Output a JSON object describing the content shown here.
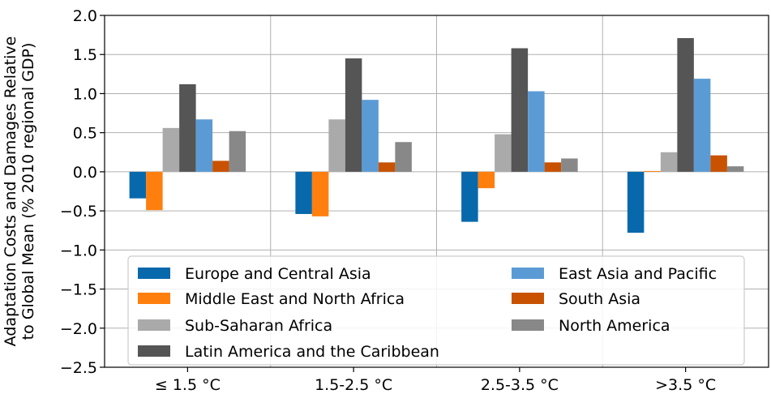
{
  "chart_data": {
    "type": "bar",
    "ylabel_lines": [
      "Adaptation Costs and Damages Relative",
      "to Global Mean (% 2010 regional GDP)"
    ],
    "xlabel": "",
    "categories": [
      "≤ 1.5 °C",
      "1.5-2.5 °C",
      "2.5-3.5 °C",
      ">3.5 °C"
    ],
    "ylim": [
      -2.5,
      2.0
    ],
    "yticks": [
      -2.5,
      -2.0,
      -1.5,
      -1.0,
      -0.5,
      0.0,
      0.5,
      1.0,
      1.5,
      2.0
    ],
    "ytick_labels": [
      "−2.5",
      "−2.0",
      "−1.5",
      "−1.0",
      "−0.5",
      "0.0",
      "0.5",
      "1.0",
      "1.5",
      "2.0"
    ],
    "grid": true,
    "legend_position": "lower-center",
    "series": [
      {
        "name": "Europe and Central Asia",
        "color": "#0868ac",
        "values": [
          -0.34,
          -0.54,
          -0.64,
          -0.78
        ]
      },
      {
        "name": "Middle East and North Africa",
        "color": "#ff7f0e",
        "values": [
          -0.49,
          -0.57,
          -0.21,
          0.01
        ]
      },
      {
        "name": "Sub-Saharan Africa",
        "color": "#aaaaaa",
        "values": [
          0.56,
          0.67,
          0.48,
          0.25
        ]
      },
      {
        "name": "Latin America and the Caribbean",
        "color": "#555555",
        "values": [
          1.12,
          1.45,
          1.58,
          1.71
        ]
      },
      {
        "name": "East Asia and Pacific",
        "color": "#5b9bd5",
        "values": [
          0.67,
          0.92,
          1.03,
          1.19
        ]
      },
      {
        "name": "South Asia",
        "color": "#c85200",
        "values": [
          0.14,
          0.12,
          0.12,
          0.21
        ]
      },
      {
        "name": "North America",
        "color": "#888888",
        "values": [
          0.52,
          0.38,
          0.17,
          0.07
        ]
      }
    ],
    "legend_order": [
      0,
      4,
      1,
      5,
      2,
      6,
      3
    ]
  }
}
